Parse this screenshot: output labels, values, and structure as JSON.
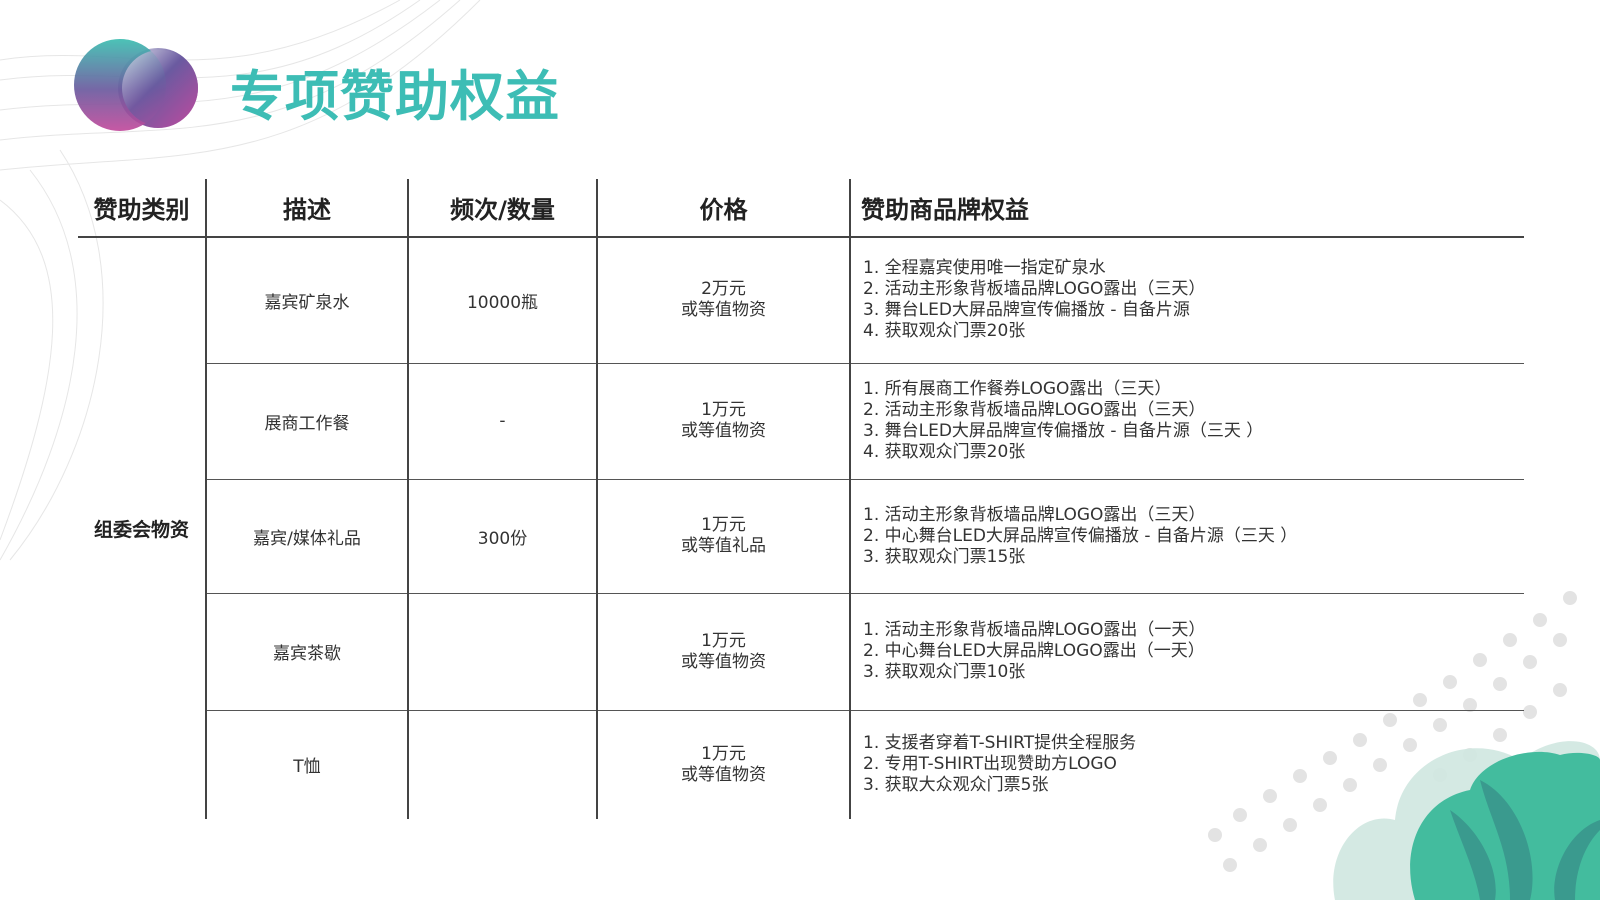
{
  "title": "专项赞助权益",
  "colors": {
    "title": "#3dbdb5",
    "accent_teal": "#3fbf9f",
    "accent_purple": "#b2489e"
  },
  "table": {
    "headers": [
      "赞助类别",
      "描述",
      "频次/数量",
      "价格",
      "赞助商品牌权益"
    ],
    "category": "组委会物资",
    "rows": [
      {
        "desc": "嘉宾矿泉水",
        "qty": "10000瓶",
        "price": [
          "2万元",
          "或等值物资"
        ],
        "benefits": [
          "1. 全程嘉宾使用唯一指定矿泉水",
          "2. 活动主形象背板墙品牌LOGO露出（三天）",
          "3. 舞台LED大屏品牌宣传偏播放 - 自备片源",
          "4. 获取观众门票20张"
        ]
      },
      {
        "desc": "展商工作餐",
        "qty": "-",
        "price": [
          "1万元",
          "或等值物资"
        ],
        "benefits": [
          "1. 所有展商工作餐券LOGO露出（三天）",
          "2. 活动主形象背板墙品牌LOGO露出（三天）",
          "3. 舞台LED大屏品牌宣传偏播放 - 自备片源（三天 ）",
          "4. 获取观众门票20张"
        ]
      },
      {
        "desc": "嘉宾/媒体礼品",
        "qty": "300份",
        "price": [
          "1万元",
          "或等值礼品"
        ],
        "benefits": [
          "1. 活动主形象背板墙品牌LOGO露出（三天）",
          "2. 中心舞台LED大屏品牌宣传偏播放 - 自备片源（三天 ）",
          "3. 获取观众门票15张"
        ]
      },
      {
        "desc": "嘉宾茶歇",
        "qty": "",
        "price": [
          "1万元",
          "或等值物资"
        ],
        "benefits": [
          "1. 活动主形象背板墙品牌LOGO露出（一天）",
          "2. 中心舞台LED大屏品牌LOGO露出（一天）",
          "3. 获取观众门票10张"
        ]
      },
      {
        "desc": "T恤",
        "qty": "",
        "price": [
          "1万元",
          "或等值物资"
        ],
        "benefits": [
          "1. 支援者穿着T-SHIRT提供全程服务",
          "2. 专用T-SHIRT出现赞助方LOGO",
          "3. 获取大众观众门票5张"
        ]
      }
    ]
  }
}
